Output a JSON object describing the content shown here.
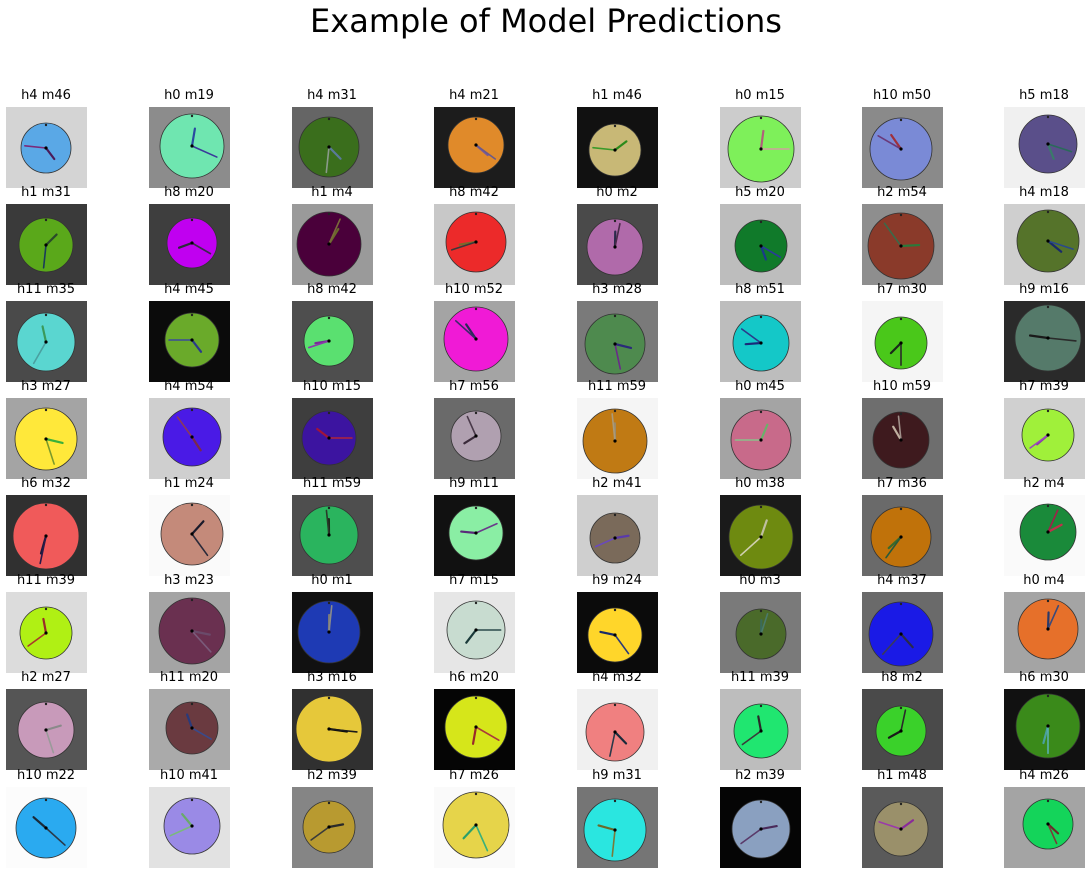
{
  "title": "Example of Model Predictions",
  "grid": [
    [
      {
        "label": "h4 m46",
        "bg": "#d4d4d4",
        "face": "#5aa8e6",
        "hand_colors": [
          "#4b1b5a",
          "#7a2a7a"
        ]
      },
      {
        "label": "h0 m19",
        "bg": "#8c8c8c",
        "face": "#6fe6b0",
        "hand_colors": [
          "#2a4aa0",
          "#3a3a9a"
        ]
      },
      {
        "label": "h4 m31",
        "bg": "#656565",
        "face": "#3a6e1c",
        "hand_colors": [
          "#5a7a9a",
          "#8a9a8a"
        ]
      },
      {
        "label": "h4 m21",
        "bg": "#1c1c1c",
        "face": "#e08a2a",
        "hand_colors": [
          "#7a5a9a",
          "#6a5a8a"
        ]
      },
      {
        "label": "h1 m46",
        "bg": "#111111",
        "face": "#c8b876",
        "hand_colors": [
          "#2a8a1a",
          "#3a9a2a"
        ]
      },
      {
        "label": "h0 m15",
        "bg": "#cccccc",
        "face": "#7ef05a",
        "hand_colors": [
          "#b0607a",
          "#d0a0a0"
        ]
      },
      {
        "label": "h10 m50",
        "bg": "#8a8a8a",
        "face": "#7a8ad6",
        "hand_colors": [
          "#a0303a",
          "#6a3a7a"
        ]
      },
      {
        "label": "h5 m18",
        "bg": "#f0f0f0",
        "face": "#5a4f8a",
        "hand_colors": [
          "#3a7a6a",
          "#2a6a5a"
        ]
      }
    ],
    [
      {
        "label": "h1 m31",
        "bg": "#3a3a3a",
        "face": "#5aa81a",
        "hand_colors": [
          "#2a4a2a",
          "#1a3a5a"
        ]
      },
      {
        "label": "h8 m20",
        "bg": "#3e3e3e",
        "face": "#c000f0",
        "hand_colors": [
          "#2a2a3a",
          "#3a2a4a"
        ]
      },
      {
        "label": "h1 m4",
        "bg": "#9a9a9a",
        "face": "#4a003a",
        "hand_colors": [
          "#6a6a2a",
          "#7a6a3a"
        ]
      },
      {
        "label": "h8 m42",
        "bg": "#c8c8c8",
        "face": "#ec2a2a",
        "hand_colors": [
          "#7a6a2a",
          "#3a3a3a"
        ]
      },
      {
        "label": "h0 m2",
        "bg": "#4a4a4a",
        "face": "#b06aaa",
        "hand_colors": [
          "#2a2a4a",
          "#4a2a4a"
        ]
      },
      {
        "label": "h5 m20",
        "bg": "#bdbdbd",
        "face": "#107a2a",
        "hand_colors": [
          "#1a3a8a",
          "#2a3a9a"
        ]
      },
      {
        "label": "h2 m54",
        "bg": "#8e8e8e",
        "face": "#8a3a2a",
        "hand_colors": [
          "#2a7a3a",
          "#3a6a4a"
        ]
      },
      {
        "label": "h4 m18",
        "bg": "#cfcfcf",
        "face": "#55732a",
        "hand_colors": [
          "#1a2a6a",
          "#2a4a8a"
        ]
      }
    ],
    [
      {
        "label": "h11 m35",
        "bg": "#4a4a4a",
        "face": "#5ad6d0",
        "hand_colors": [
          "#3a9a5a",
          "#4aa0a0"
        ]
      },
      {
        "label": "h4 m45",
        "bg": "#0b0b0b",
        "face": "#6aaa2a",
        "hand_colors": [
          "#2a3a8a",
          "#3a4a9a"
        ]
      },
      {
        "label": "h8 m42",
        "bg": "#4e4e4e",
        "face": "#5ae070",
        "hand_colors": [
          "#7a2a9a",
          "#8a3aaa"
        ]
      },
      {
        "label": "h10 m52",
        "bg": "#a4a4a4",
        "face": "#f01ad6",
        "hand_colors": [
          "#2a2a5a",
          "#3a2a6a"
        ]
      },
      {
        "label": "h3 m28",
        "bg": "#7a7a7a",
        "face": "#4e8a4e",
        "hand_colors": [
          "#2a2a7a",
          "#6a2a8a"
        ]
      },
      {
        "label": "h8 m51",
        "bg": "#bdbdbd",
        "face": "#14c8c8",
        "hand_colors": [
          "#1a2a7a",
          "#2a3a8a"
        ]
      },
      {
        "label": "h7 m30",
        "bg": "#f5f5f5",
        "face": "#4ac81a",
        "hand_colors": [
          "#1a2a1a",
          "#2a2a2a"
        ]
      },
      {
        "label": "h9 m16",
        "bg": "#2a2a2a",
        "face": "#557a6a",
        "hand_colors": [
          "#1a1a1a",
          "#2a2a2a"
        ]
      }
    ],
    [
      {
        "label": "h3 m27",
        "bg": "#a4a4a4",
        "face": "#ffe83a",
        "hand_colors": [
          "#3ab03a",
          "#7a9a2a"
        ]
      },
      {
        "label": "h4 m54",
        "bg": "#cfcfcf",
        "face": "#4a1ae6",
        "hand_colors": [
          "#7a2a4a",
          "#8a3a5a"
        ]
      },
      {
        "label": "h10 m15",
        "bg": "#3e3e3e",
        "face": "#3c14a0",
        "hand_colors": [
          "#a0143a",
          "#b0243a"
        ]
      },
      {
        "label": "h7 m56",
        "bg": "#6a6a6a",
        "face": "#b0a0b0",
        "hand_colors": [
          "#3a2a3a",
          "#4a3a4a"
        ]
      },
      {
        "label": "h11 m59",
        "bg": "#f5f5f5",
        "face": "#c07a14",
        "hand_colors": [
          "#9a8a6a",
          "#aa9a7a"
        ]
      },
      {
        "label": "h0 m45",
        "bg": "#a4a4a4",
        "face": "#c86a8a",
        "hand_colors": [
          "#6ab06a",
          "#8ac08a"
        ]
      },
      {
        "label": "h10 m59",
        "bg": "#6e6e6e",
        "face": "#3e1a1e",
        "hand_colors": [
          "#c0b0a0",
          "#a0908a"
        ]
      },
      {
        "label": "h7 m39",
        "bg": "#d0d0d0",
        "face": "#a0f03a",
        "hand_colors": [
          "#8a3aaa",
          "#9a4aba"
        ]
      }
    ],
    [
      {
        "label": "h6 m32",
        "bg": "#303030",
        "face": "#f05a5a",
        "hand_colors": [
          "#1a1a3a",
          "#2a1a4a"
        ]
      },
      {
        "label": "h1 m24",
        "bg": "#fafafa",
        "face": "#c48a7a",
        "hand_colors": [
          "#1a1a2a",
          "#2a2a3a"
        ]
      },
      {
        "label": "h11 m59",
        "bg": "#4e4e4e",
        "face": "#2ab45e",
        "hand_colors": [
          "#1a2a1a",
          "#2a3a2a"
        ]
      },
      {
        "label": "h9 m11",
        "bg": "#111111",
        "face": "#8aeea4",
        "hand_colors": [
          "#5a2a7a",
          "#6a3a8a"
        ]
      },
      {
        "label": "h2 m41",
        "bg": "#cfcfcf",
        "face": "#7a6a5a",
        "hand_colors": [
          "#5a3aaa",
          "#6a4aba"
        ]
      },
      {
        "label": "h0 m38",
        "bg": "#1a1a1a",
        "face": "#6e8a10",
        "hand_colors": [
          "#c0c0a0",
          "#d0d0b0"
        ]
      },
      {
        "label": "h7 m36",
        "bg": "#6a6a6a",
        "face": "#c0720a",
        "hand_colors": [
          "#3a6a2a",
          "#2a5a3a"
        ]
      },
      {
        "label": "h2 m4",
        "bg": "#fafafa",
        "face": "#1a8a3a",
        "hand_colors": [
          "#c0304a",
          "#a0204a"
        ]
      }
    ],
    [
      {
        "label": "h11 m39",
        "bg": "#dcdcdc",
        "face": "#b0f014",
        "hand_colors": [
          "#9a2a2a",
          "#aa3a2a"
        ]
      },
      {
        "label": "h3 m23",
        "bg": "#a4a4a4",
        "face": "#6a3050",
        "hand_colors": [
          "#6a4a6a",
          "#7a5a7a"
        ]
      },
      {
        "label": "h0 m1",
        "bg": "#111111",
        "face": "#1e3ab4",
        "hand_colors": [
          "#7a7a7a",
          "#8a8a8a"
        ]
      },
      {
        "label": "h7 m15",
        "bg": "#e6e6e6",
        "face": "#c8dcd0",
        "hand_colors": [
          "#1a3a3a",
          "#2a4a4a"
        ]
      },
      {
        "label": "h9 m24",
        "bg": "#0b0b0b",
        "face": "#ffd62a",
        "hand_colors": [
          "#1a2a6a",
          "#2a3a7a"
        ]
      },
      {
        "label": "h0 m3",
        "bg": "#7a7a7a",
        "face": "#4a6a2a",
        "hand_colors": [
          "#3a6a5a",
          "#4a7a6a"
        ]
      },
      {
        "label": "h4 m37",
        "bg": "#6a6a6a",
        "face": "#1a1ae6",
        "hand_colors": [
          "#2a2a4a",
          "#3a3a5a"
        ]
      },
      {
        "label": "h0 m4",
        "bg": "#a4a4a4",
        "face": "#e6702a",
        "hand_colors": [
          "#2a3a6a",
          "#3a4a7a"
        ]
      }
    ],
    [
      {
        "label": "h2 m27",
        "bg": "#555555",
        "face": "#c89aba",
        "hand_colors": [
          "#8a8a8a",
          "#9a9a9a"
        ]
      },
      {
        "label": "h11 m20",
        "bg": "#aaaaaa",
        "face": "#6a3a40",
        "hand_colors": [
          "#2a3a7a",
          "#3a4a8a"
        ]
      },
      {
        "label": "h3 m16",
        "bg": "#303030",
        "face": "#e6c83a",
        "hand_colors": [
          "#0a0a0a",
          "#1a1a1a"
        ]
      },
      {
        "label": "h6 m20",
        "bg": "#050505",
        "face": "#d6e61a",
        "hand_colors": [
          "#9a2a2a",
          "#aa3a3a"
        ]
      },
      {
        "label": "h4 m32",
        "bg": "#f0f0f0",
        "face": "#f08080",
        "hand_colors": [
          "#1a2a3a",
          "#2a3a4a"
        ]
      },
      {
        "label": "h11 m39",
        "bg": "#bdbdbd",
        "face": "#20e670",
        "hand_colors": [
          "#2a2a2a",
          "#3a3a3a"
        ]
      },
      {
        "label": "h8 m2",
        "bg": "#4a4a4a",
        "face": "#3ad12a",
        "hand_colors": [
          "#1a1a1a",
          "#2a2a2a"
        ]
      },
      {
        "label": "h6 m30",
        "bg": "#111111",
        "face": "#3a8a1a",
        "hand_colors": [
          "#4aa0a0",
          "#5ab0b0"
        ]
      }
    ],
    [
      {
        "label": "h10 m22",
        "bg": "#fcfcfc",
        "face": "#2aaaf0",
        "hand_colors": [
          "#1a2a3a",
          "#2a3a4a"
        ]
      },
      {
        "label": "h10 m41",
        "bg": "#e2e2e2",
        "face": "#9a8ae6",
        "hand_colors": [
          "#6aaa6a",
          "#7aba7a"
        ]
      },
      {
        "label": "h2 m39",
        "bg": "#858585",
        "face": "#b89a30",
        "hand_colors": [
          "#2a2a2a",
          "#3a3a3a"
        ]
      },
      {
        "label": "h7 m26",
        "bg": "#fafafa",
        "face": "#e6d44a",
        "hand_colors": [
          "#2aa06a",
          "#3ab07a"
        ]
      },
      {
        "label": "h9 m31",
        "bg": "#757575",
        "face": "#2ae6e0",
        "hand_colors": [
          "#6a6a2a",
          "#7a7a3a"
        ]
      },
      {
        "label": "h2 m39",
        "bg": "#050505",
        "face": "#8aa0c0",
        "hand_colors": [
          "#4a2a5a",
          "#5a3a6a"
        ]
      },
      {
        "label": "h1 m48",
        "bg": "#5a5a5a",
        "face": "#9a906a",
        "hand_colors": [
          "#8a2a9a",
          "#9a3aaa"
        ]
      },
      {
        "label": "h4 m26",
        "bg": "#a4a4a4",
        "face": "#14d45a",
        "hand_colors": [
          "#6a2a2a",
          "#7a3a3a"
        ]
      }
    ]
  ]
}
